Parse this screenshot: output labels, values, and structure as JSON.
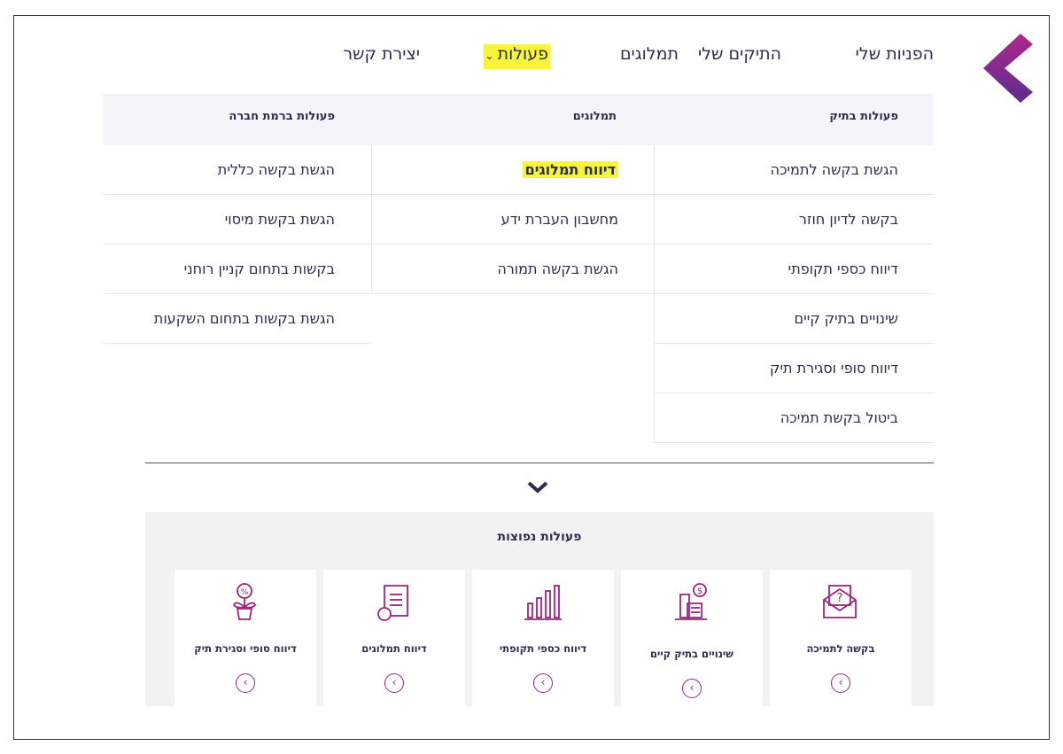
{
  "nav": {
    "items": [
      "הפניות שלי",
      "התיקים שלי",
      "תמלוגים",
      "פעולות",
      "יצירת קשר"
    ],
    "active": "פעולות"
  },
  "menu": {
    "columns": [
      {
        "header": "פעולות בתיק",
        "items": [
          "הגשת בקשה לתמיכה",
          "בקשה לדיון חוזר",
          "דיווח כספי תקופתי",
          "שינויים בתיק קיים",
          "דיווח סופי וסגירת תיק",
          "ביטול בקשת תמיכה"
        ]
      },
      {
        "header": "תמלוגים",
        "items": [
          "דיווח תמלוגים",
          "מחשבון העברת ידע",
          "הגשת בקשה תמורה"
        ],
        "highlighted": "דיווח תמלוגים"
      },
      {
        "header": "פעולות ברמת חברה",
        "items": [
          "הגשת בקשה כללית",
          "הגשת בקשת מיסוי",
          "בקשות בתחום קניין רוחני",
          "הגשת בקשות בתחום השקעות"
        ]
      }
    ]
  },
  "popular": {
    "title": "פעולות נפוצות",
    "cards": [
      {
        "label": "בקשה לתמיכה",
        "icon": "envelope-question-icon"
      },
      {
        "label": "שינויים בתיק קיים",
        "icon": "building-dollar-icon"
      },
      {
        "label": "דיווח כספי תקופתי",
        "icon": "bar-chart-shekel-icon"
      },
      {
        "label": "דיווח תמלוגים",
        "icon": "document-shekel-icon"
      },
      {
        "label": "דיווח סופי וסגירת תיק",
        "icon": "plant-percent-icon"
      }
    ]
  },
  "colors": {
    "accent": "#a0247c",
    "highlight": "#f7f43a",
    "text": "#2b2d4e",
    "logo_top": "#b0288c",
    "logo_bottom": "#5b2d90"
  }
}
